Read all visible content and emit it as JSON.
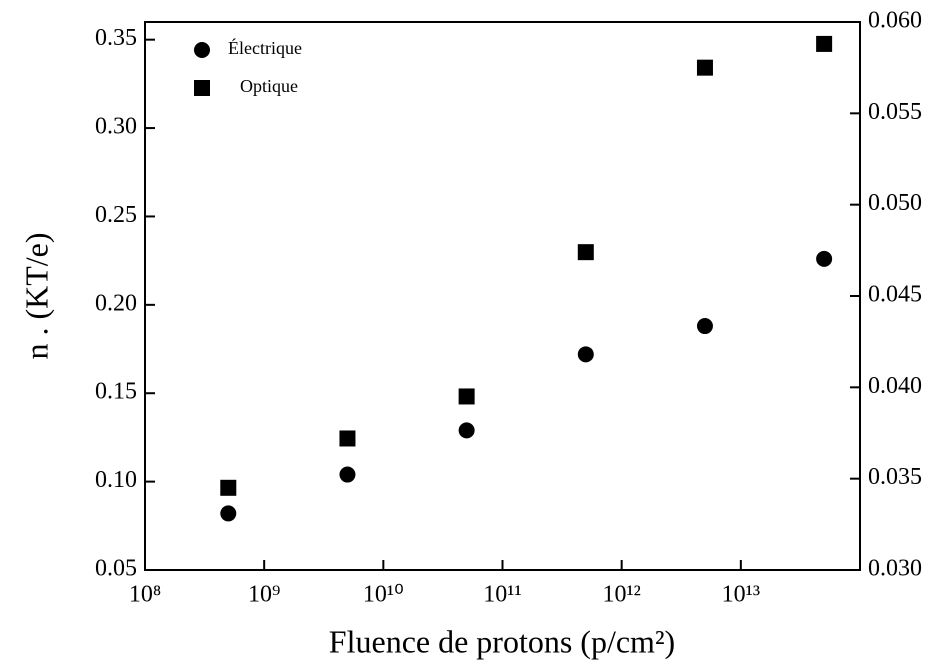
{
  "chart_data": {
    "type": "scatter",
    "x_label": "Fluence de protons (p/cm²)",
    "y_label": "n . (KT/e)",
    "xscale": "log",
    "xlim": [
      100000000,
      100000000000000
    ],
    "xticks": [
      {
        "value": 100000000,
        "label": "10⁸"
      },
      {
        "value": 1000000000,
        "label": "10⁹"
      },
      {
        "value": 10000000000,
        "label": "10¹⁰"
      },
      {
        "value": 100000000000,
        "label": "10¹¹"
      },
      {
        "value": 1000000000000,
        "label": "10¹²"
      },
      {
        "value": 10000000000000,
        "label": "10¹³"
      }
    ],
    "ylim": [
      0.05,
      0.36
    ],
    "yticks": [
      0.05,
      {
        "value": 0.1,
        "label": "0.10"
      },
      0.15,
      {
        "value": 0.2,
        "label": "0.20"
      },
      0.25,
      {
        "value": 0.3,
        "label": "0.30"
      },
      0.35
    ],
    "y2lim": [
      0.03,
      0.06
    ],
    "y2ticks": [
      {
        "value": 0.03,
        "label": "0.030"
      },
      0.035,
      {
        "value": 0.04,
        "label": "0.040"
      },
      0.045,
      {
        "value": 0.05,
        "label": "0.050"
      },
      0.055,
      {
        "value": 0.06,
        "label": "0.060"
      }
    ],
    "legend": "upper left",
    "series": [
      {
        "name": "Électrique",
        "marker": "circle",
        "color": "#000000",
        "x": [
          500000000,
          5000000000,
          50000000000,
          500000000000,
          5000000000000,
          50000000000000
        ],
        "values": [
          0.082,
          0.104,
          0.129,
          0.172,
          0.188,
          0.226
        ]
      },
      {
        "name": "Optique",
        "marker": "square",
        "color": "#000000",
        "axis": "y2",
        "x": [
          500000000,
          5000000000,
          50000000000,
          500000000000,
          5000000000000,
          50000000000000
        ],
        "values": [
          0.0345,
          0.0372,
          0.0395,
          0.0474,
          0.0575,
          0.0588
        ]
      }
    ]
  }
}
